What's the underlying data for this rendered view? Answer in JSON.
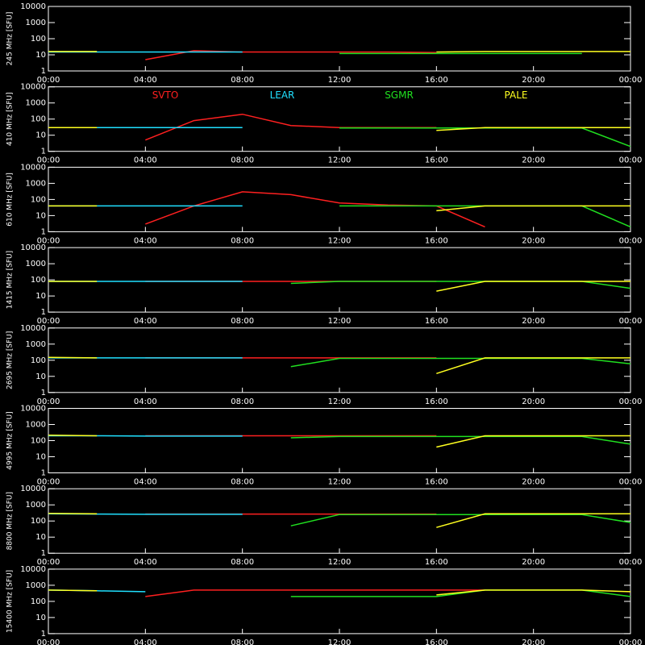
{
  "chart_data": [
    {
      "type": "line",
      "ylabel": "245 MHz [SFU]",
      "log_scale": true,
      "xlim": [
        0,
        24
      ],
      "ylim": [
        1,
        10000
      ],
      "yticks": [
        1,
        10,
        100,
        1000,
        10000
      ],
      "xticks": [
        {
          "value": 0,
          "label": "00:00"
        },
        {
          "value": 4,
          "label": "04:00"
        },
        {
          "value": 8,
          "label": "08:00"
        },
        {
          "value": 12,
          "label": "12:00"
        },
        {
          "value": 16,
          "label": "16:00"
        },
        {
          "value": 20,
          "label": "20:00"
        },
        {
          "value": 24,
          "label": "00:00"
        }
      ],
      "x": [
        0,
        2,
        4,
        6,
        8,
        10,
        12,
        14,
        16,
        18,
        20,
        22,
        24
      ],
      "series": [
        {
          "color": "#ff2020",
          "values": [
            null,
            null,
            5,
            18,
            15,
            15,
            15,
            15,
            14,
            null,
            null,
            null,
            null
          ]
        },
        {
          "color": "#20e0ff",
          "values": [
            15,
            15,
            15,
            15,
            15,
            null,
            null,
            null,
            null,
            null,
            null,
            null,
            null
          ]
        },
        {
          "color": "#20e020",
          "values": [
            null,
            null,
            null,
            null,
            null,
            null,
            12,
            12,
            12,
            12,
            12,
            12,
            null
          ]
        },
        {
          "color": "#ffff20",
          "values": [
            16,
            16,
            null,
            null,
            null,
            null,
            null,
            null,
            15,
            16,
            16,
            16,
            16
          ]
        }
      ]
    },
    {
      "type": "line",
      "ylabel": "410 MHz [SFU]",
      "log_scale": true,
      "xlim": [
        0,
        24
      ],
      "ylim": [
        1,
        10000
      ],
      "yticks": [
        1,
        10,
        100,
        1000,
        10000
      ],
      "xticks": [
        {
          "value": 0,
          "label": "00:00"
        },
        {
          "value": 4,
          "label": "04:00"
        },
        {
          "value": 8,
          "label": "08:00"
        },
        {
          "value": 12,
          "label": "12:00"
        },
        {
          "value": 16,
          "label": "16:00"
        },
        {
          "value": 20,
          "label": "20:00"
        },
        {
          "value": 24,
          "label": "00:00"
        }
      ],
      "x": [
        0,
        2,
        4,
        6,
        8,
        10,
        12,
        14,
        16,
        18,
        20,
        22,
        24
      ],
      "series": [
        {
          "name": "SVTO",
          "color": "#ff2020",
          "values": [
            null,
            null,
            5,
            80,
            200,
            40,
            30,
            30,
            30,
            null,
            null,
            null,
            null
          ]
        },
        {
          "name": "LEAR",
          "color": "#20e0ff",
          "values": [
            30,
            30,
            30,
            30,
            30,
            null,
            null,
            null,
            null,
            null,
            null,
            null,
            null
          ]
        },
        {
          "name": "SGMR",
          "color": "#20e020",
          "values": [
            null,
            null,
            null,
            null,
            null,
            null,
            28,
            28,
            28,
            28,
            28,
            28,
            2
          ]
        },
        {
          "name": "PALE",
          "color": "#ffff20",
          "values": [
            30,
            30,
            null,
            null,
            null,
            null,
            null,
            null,
            20,
            30,
            30,
            30,
            30
          ]
        }
      ]
    },
    {
      "type": "line",
      "ylabel": "610 MHz [SFU]",
      "log_scale": true,
      "xlim": [
        0,
        24
      ],
      "ylim": [
        1,
        10000
      ],
      "yticks": [
        1,
        10,
        100,
        1000,
        10000
      ],
      "xticks": [
        {
          "value": 0,
          "label": "00:00"
        },
        {
          "value": 4,
          "label": "04:00"
        },
        {
          "value": 8,
          "label": "08:00"
        },
        {
          "value": 12,
          "label": "12:00"
        },
        {
          "value": 16,
          "label": "16:00"
        },
        {
          "value": 20,
          "label": "20:00"
        },
        {
          "value": 24,
          "label": "00:00"
        }
      ],
      "x": [
        0,
        2,
        4,
        6,
        8,
        10,
        12,
        14,
        16,
        18,
        20,
        22,
        24
      ],
      "series": [
        {
          "color": "#ff2020",
          "values": [
            null,
            null,
            3,
            40,
            300,
            200,
            60,
            45,
            40,
            2,
            null,
            null,
            null
          ]
        },
        {
          "color": "#20e0ff",
          "values": [
            40,
            40,
            40,
            40,
            40,
            null,
            null,
            null,
            null,
            null,
            null,
            null,
            null
          ]
        },
        {
          "color": "#20e020",
          "values": [
            null,
            null,
            null,
            null,
            null,
            null,
            40,
            40,
            40,
            40,
            40,
            40,
            2
          ]
        },
        {
          "color": "#ffff20",
          "values": [
            40,
            40,
            null,
            null,
            null,
            null,
            null,
            null,
            20,
            40,
            40,
            40,
            40
          ]
        }
      ]
    },
    {
      "type": "line",
      "ylabel": "1415 MHz [SFU]",
      "log_scale": true,
      "xlim": [
        0,
        24
      ],
      "ylim": [
        1,
        10000
      ],
      "yticks": [
        1,
        10,
        100,
        1000,
        10000
      ],
      "xticks": [
        {
          "value": 0,
          "label": "00:00"
        },
        {
          "value": 4,
          "label": "04:00"
        },
        {
          "value": 8,
          "label": "08:00"
        },
        {
          "value": 12,
          "label": "12:00"
        },
        {
          "value": 16,
          "label": "16:00"
        },
        {
          "value": 20,
          "label": "20:00"
        },
        {
          "value": 24,
          "label": "00:00"
        }
      ],
      "x": [
        0,
        2,
        4,
        6,
        8,
        10,
        12,
        14,
        16,
        18,
        20,
        22,
        24
      ],
      "series": [
        {
          "color": "#ff2020",
          "values": [
            null,
            null,
            80,
            80,
            80,
            80,
            80,
            80,
            80,
            null,
            null,
            null,
            null
          ]
        },
        {
          "color": "#20e0ff",
          "values": [
            80,
            80,
            80,
            80,
            80,
            null,
            null,
            null,
            null,
            null,
            null,
            null,
            null
          ]
        },
        {
          "color": "#20e020",
          "values": [
            null,
            null,
            null,
            null,
            null,
            60,
            80,
            80,
            80,
            80,
            80,
            80,
            30
          ]
        },
        {
          "color": "#ffff20",
          "values": [
            80,
            80,
            null,
            null,
            null,
            null,
            null,
            null,
            20,
            80,
            80,
            80,
            80
          ]
        }
      ]
    },
    {
      "type": "line",
      "ylabel": "2695 MHz [SFU]",
      "log_scale": true,
      "xlim": [
        0,
        24
      ],
      "ylim": [
        1,
        10000
      ],
      "yticks": [
        1,
        10,
        100,
        1000,
        10000
      ],
      "xticks": [
        {
          "value": 0,
          "label": "00:00"
        },
        {
          "value": 4,
          "label": "04:00"
        },
        {
          "value": 8,
          "label": "08:00"
        },
        {
          "value": 12,
          "label": "12:00"
        },
        {
          "value": 16,
          "label": "16:00"
        },
        {
          "value": 20,
          "label": "20:00"
        },
        {
          "value": 24,
          "label": "00:00"
        }
      ],
      "x": [
        0,
        2,
        4,
        6,
        8,
        10,
        12,
        14,
        16,
        18,
        20,
        22,
        24
      ],
      "series": [
        {
          "color": "#ff2020",
          "values": [
            null,
            null,
            140,
            140,
            140,
            140,
            140,
            140,
            140,
            null,
            null,
            null,
            null
          ]
        },
        {
          "color": "#20e0ff",
          "values": [
            140,
            140,
            140,
            140,
            140,
            null,
            null,
            null,
            null,
            null,
            null,
            null,
            null
          ]
        },
        {
          "color": "#20e020",
          "values": [
            null,
            null,
            null,
            null,
            null,
            40,
            130,
            130,
            130,
            130,
            130,
            130,
            60
          ]
        },
        {
          "color": "#ffff20",
          "values": [
            150,
            140,
            null,
            null,
            null,
            null,
            null,
            null,
            15,
            140,
            140,
            140,
            140
          ]
        }
      ]
    },
    {
      "type": "line",
      "ylabel": "4995 MHz [SFU]",
      "log_scale": true,
      "xlim": [
        0,
        24
      ],
      "ylim": [
        1,
        10000
      ],
      "yticks": [
        1,
        10,
        100,
        1000,
        10000
      ],
      "xticks": [
        {
          "value": 0,
          "label": "00:00"
        },
        {
          "value": 4,
          "label": "04:00"
        },
        {
          "value": 8,
          "label": "08:00"
        },
        {
          "value": 12,
          "label": "12:00"
        },
        {
          "value": 16,
          "label": "16:00"
        },
        {
          "value": 20,
          "label": "20:00"
        },
        {
          "value": 24,
          "label": "00:00"
        }
      ],
      "x": [
        0,
        2,
        4,
        6,
        8,
        10,
        12,
        14,
        16,
        18,
        20,
        22,
        24
      ],
      "series": [
        {
          "color": "#ff2020",
          "values": [
            null,
            null,
            200,
            200,
            200,
            200,
            200,
            200,
            200,
            null,
            null,
            null,
            null
          ]
        },
        {
          "color": "#20e0ff",
          "values": [
            200,
            200,
            190,
            190,
            190,
            null,
            null,
            null,
            null,
            null,
            null,
            null,
            null
          ]
        },
        {
          "color": "#20e020",
          "values": [
            null,
            null,
            null,
            null,
            null,
            150,
            180,
            180,
            180,
            180,
            180,
            180,
            60
          ]
        },
        {
          "color": "#ffff20",
          "values": [
            220,
            200,
            null,
            null,
            null,
            null,
            null,
            null,
            40,
            200,
            200,
            200,
            200
          ]
        }
      ]
    },
    {
      "type": "line",
      "ylabel": "8800 MHz [SFU]",
      "log_scale": true,
      "xlim": [
        0,
        24
      ],
      "ylim": [
        1,
        10000
      ],
      "yticks": [
        1,
        10,
        100,
        1000,
        10000
      ],
      "xticks": [
        {
          "value": 0,
          "label": "00:00"
        },
        {
          "value": 4,
          "label": "04:00"
        },
        {
          "value": 8,
          "label": "08:00"
        },
        {
          "value": 12,
          "label": "12:00"
        },
        {
          "value": 16,
          "label": "16:00"
        },
        {
          "value": 20,
          "label": "20:00"
        },
        {
          "value": 24,
          "label": "00:00"
        }
      ],
      "x": [
        0,
        2,
        4,
        6,
        8,
        10,
        12,
        14,
        16,
        18,
        20,
        22,
        24
      ],
      "series": [
        {
          "color": "#ff2020",
          "values": [
            null,
            null,
            270,
            270,
            270,
            270,
            270,
            270,
            270,
            null,
            null,
            null,
            null
          ]
        },
        {
          "color": "#20e0ff",
          "values": [
            280,
            270,
            260,
            260,
            260,
            null,
            null,
            null,
            null,
            null,
            null,
            null,
            null
          ]
        },
        {
          "color": "#20e020",
          "values": [
            null,
            null,
            null,
            null,
            null,
            50,
            250,
            250,
            250,
            250,
            250,
            250,
            80
          ]
        },
        {
          "color": "#ffff20",
          "values": [
            300,
            280,
            null,
            null,
            null,
            null,
            null,
            null,
            40,
            280,
            280,
            280,
            280
          ]
        }
      ]
    },
    {
      "type": "line",
      "ylabel": "15400 MHz [SFU]",
      "log_scale": true,
      "xlim": [
        0,
        24
      ],
      "ylim": [
        1,
        10000
      ],
      "yticks": [
        1,
        10,
        100,
        1000,
        10000
      ],
      "xticks": [
        {
          "value": 0,
          "label": "00:00"
        },
        {
          "value": 4,
          "label": "04:00"
        },
        {
          "value": 8,
          "label": "08:00"
        },
        {
          "value": 12,
          "label": "12:00"
        },
        {
          "value": 16,
          "label": "16:00"
        },
        {
          "value": 20,
          "label": "20:00"
        },
        {
          "value": 24,
          "label": "00:00"
        }
      ],
      "x": [
        0,
        2,
        4,
        6,
        8,
        10,
        12,
        14,
        16,
        18,
        20,
        22,
        24
      ],
      "series": [
        {
          "color": "#ff2020",
          "values": [
            null,
            null,
            200,
            500,
            500,
            500,
            500,
            500,
            500,
            500,
            null,
            null,
            null
          ]
        },
        {
          "color": "#20e0ff",
          "values": [
            500,
            450,
            400,
            null,
            null,
            null,
            null,
            null,
            null,
            null,
            null,
            null,
            null
          ]
        },
        {
          "color": "#20e020",
          "values": [
            null,
            null,
            null,
            null,
            null,
            200,
            200,
            200,
            200,
            500,
            500,
            500,
            200
          ]
        },
        {
          "color": "#ffff20",
          "values": [
            500,
            450,
            null,
            null,
            null,
            null,
            null,
            null,
            250,
            500,
            500,
            500,
            400
          ]
        }
      ]
    }
  ]
}
